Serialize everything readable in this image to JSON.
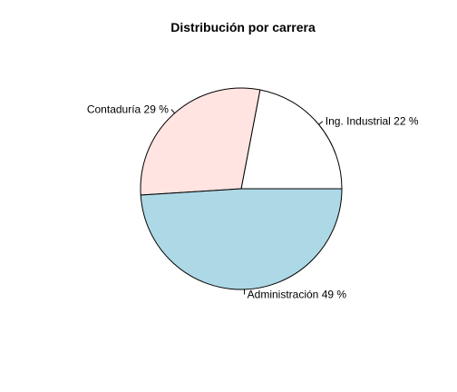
{
  "chart_data": {
    "type": "pie",
    "title": "Distribución por carrera",
    "slices": [
      {
        "label": "Ing. Industrial 22 %",
        "value": 22,
        "color": "#ffffff"
      },
      {
        "label": "Contaduría  29 %",
        "value": 29,
        "color": "#ffe4e1"
      },
      {
        "label": "Administración  49 %",
        "value": 49,
        "color": "#add8e6"
      }
    ],
    "start_angle_deg": 0,
    "direction": "counterclockwise"
  }
}
